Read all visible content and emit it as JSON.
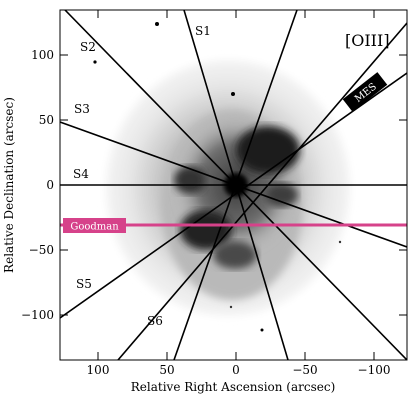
{
  "figure": {
    "filter_label": "[OIII]",
    "x_axis": {
      "title": "Relative Right Ascension (arcsec)",
      "ticks": [
        "100",
        "50",
        "0",
        "−50",
        "−100"
      ]
    },
    "y_axis": {
      "title": "Relative Declination (arcsec)",
      "ticks": [
        "100",
        "50",
        "0",
        "−50",
        "−100"
      ]
    },
    "slit_labels": [
      "S1",
      "S2",
      "S3",
      "S4",
      "S5",
      "S6"
    ],
    "mes_label": "MES",
    "goodman_label": "Goodman",
    "colors": {
      "goodman": "#d6428a",
      "mes": "#000000",
      "frame": "#000000"
    }
  }
}
